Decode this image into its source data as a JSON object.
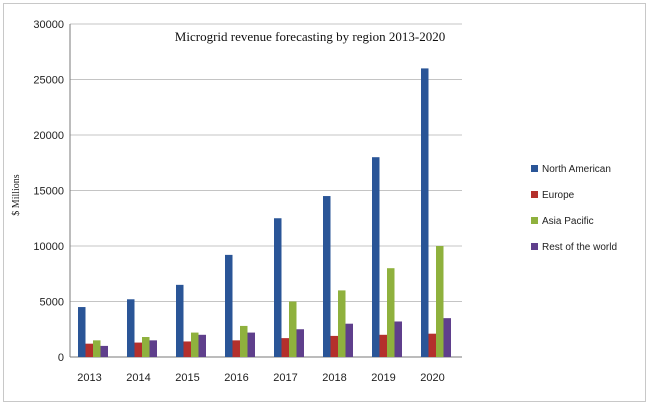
{
  "chart_data": {
    "type": "bar",
    "title": "Microgrid revenue forecasting by region 2013-2020",
    "xlabel": "",
    "ylabel": "$ Millions",
    "ylim": [
      0,
      30000
    ],
    "yticks": [
      "0",
      "5000",
      "10000",
      "15000",
      "20000",
      "25000",
      "30000"
    ],
    "grid": true,
    "legend_position": "right",
    "categories": [
      "2013",
      "2014",
      "2015",
      "2016",
      "2017",
      "2018",
      "2019",
      "2020"
    ],
    "series": [
      {
        "name": "North American",
        "color": "#2a5597",
        "values": [
          4500,
          5200,
          6500,
          9200,
          12500,
          14500,
          18000,
          26000
        ]
      },
      {
        "name": "Europe",
        "color": "#b4302c",
        "values": [
          1200,
          1300,
          1400,
          1500,
          1700,
          1900,
          2000,
          2100
        ]
      },
      {
        "name": "Asia Pacific",
        "color": "#8fb13d",
        "values": [
          1500,
          1800,
          2200,
          2800,
          5000,
          6000,
          8000,
          10000
        ]
      },
      {
        "name": "Rest of the world",
        "color": "#5f3f8c",
        "values": [
          1000,
          1500,
          2000,
          2200,
          2500,
          3000,
          3200,
          3500
        ]
      }
    ]
  }
}
